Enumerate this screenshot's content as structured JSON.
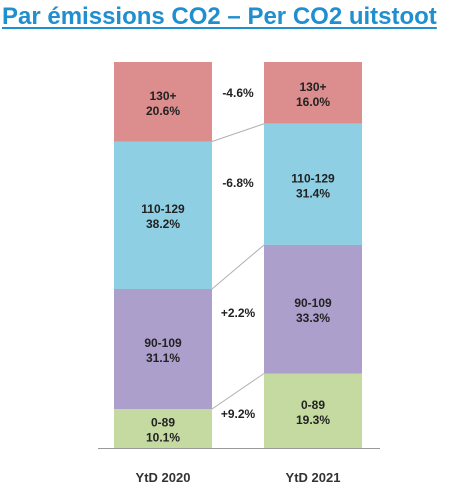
{
  "title": "Par émissions CO2 – Per CO2 uitstoot",
  "colors": {
    "title": "#1f8fcf",
    "130+": "#dc8d8d",
    "110-129": "#8fcfe3",
    "90-109": "#ad9fcb",
    "0-89": "#c4daa0",
    "axis": "#9a9a9a",
    "connector": "#b0b0b0"
  },
  "chart_data": {
    "type": "bar",
    "stacked": true,
    "percent": true,
    "categories": [
      "YtD 2020",
      "YtD 2021"
    ],
    "series": [
      {
        "name": "130+",
        "values": [
          20.6,
          16.0
        ],
        "labels": [
          "20.6%",
          "16.0%"
        ]
      },
      {
        "name": "110-129",
        "values": [
          38.2,
          31.4
        ],
        "labels": [
          "38.2%",
          "31.4%"
        ]
      },
      {
        "name": "90-109",
        "values": [
          31.1,
          33.3
        ],
        "labels": [
          "31.1%",
          "33.3%"
        ]
      },
      {
        "name": "0-89",
        "values": [
          10.1,
          19.3
        ],
        "labels": [
          "10.1%",
          "19.3%"
        ]
      }
    ],
    "changes": [
      {
        "series": "130+",
        "label": "-4.6%"
      },
      {
        "series": "110-129",
        "label": "-6.8%"
      },
      {
        "series": "90-109",
        "label": "+2.2%"
      },
      {
        "series": "0-89",
        "label": "+9.2%"
      }
    ],
    "ylim": [
      0,
      100
    ],
    "legend": "none"
  }
}
